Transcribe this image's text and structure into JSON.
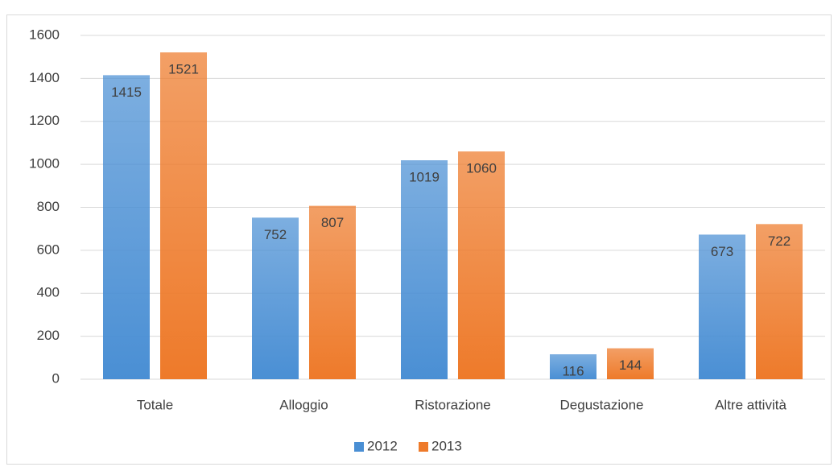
{
  "chart_data": {
    "type": "bar",
    "categories": [
      "Totale",
      "Alloggio",
      "Ristorazione",
      "Degustazione",
      "Altre attività"
    ],
    "series": [
      {
        "name": "2012",
        "color": "#4a8fd4",
        "values": [
          1415,
          752,
          1019,
          116,
          673
        ]
      },
      {
        "name": "2013",
        "color": "#ee7a2a",
        "values": [
          1521,
          807,
          1060,
          144,
          722
        ]
      }
    ],
    "ylim": [
      0,
      1600
    ],
    "yticks": [
      0,
      200,
      400,
      600,
      800,
      1000,
      1200,
      1400,
      1600
    ],
    "grid": true,
    "legend": "bottom"
  }
}
